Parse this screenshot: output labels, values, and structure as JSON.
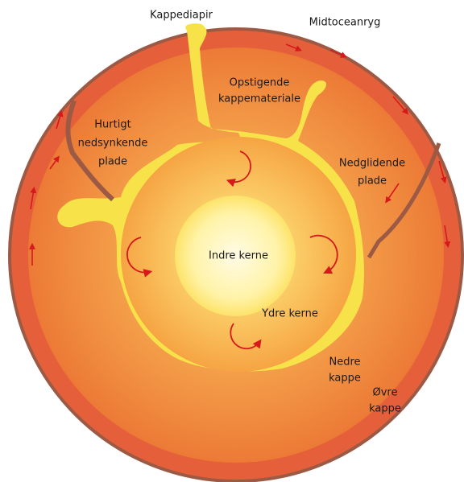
{
  "labels": {
    "plume": "Kappediapir",
    "ridge": "Midtoceanryg",
    "rising": [
      "Opstigende",
      "kappemateriale"
    ],
    "fast_slab": [
      "Hurtigt",
      "nedsynkende",
      "plade"
    ],
    "sliding_slab": [
      "Nedglidende",
      "plade"
    ],
    "inner_core": "Indre kerne",
    "outer_core": "Ydre kerne",
    "lower_mantle": [
      "Nedre",
      "kappe"
    ],
    "upper_mantle": [
      "Øvre",
      "kappe"
    ]
  }
}
